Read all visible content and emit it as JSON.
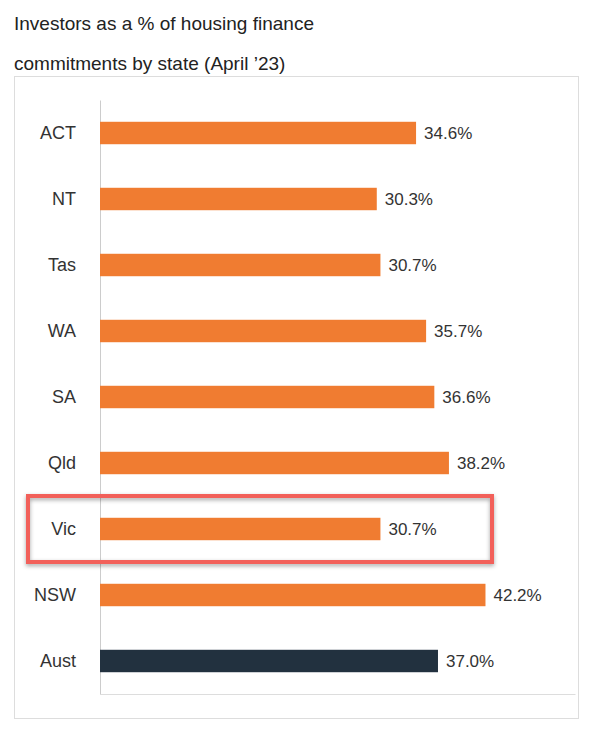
{
  "chart_data": {
    "type": "bar",
    "title": "Investors as a % of housing finance commitments by state (April ’23)",
    "orientation": "horizontal",
    "categories": [
      "ACT",
      "NT",
      "Tas",
      "WA",
      "SA",
      "Qld",
      "Vic",
      "NSW",
      "Aust"
    ],
    "values": [
      34.6,
      30.3,
      30.7,
      35.7,
      36.6,
      38.2,
      30.7,
      42.2,
      37.0
    ],
    "value_labels": [
      "34.6%",
      "30.3%",
      "30.7%",
      "35.7%",
      "36.6%",
      "38.2%",
      "30.7%",
      "42.2%",
      "37.0%"
    ],
    "colors": [
      "#f07c31",
      "#f07c31",
      "#f07c31",
      "#f07c31",
      "#f07c31",
      "#f07c31",
      "#f07c31",
      "#f07c31",
      "#22313f"
    ],
    "xlim": [
      0,
      52
    ],
    "xticks": [],
    "tick_labels": "y",
    "data_labels": true,
    "grid": false
  }
}
